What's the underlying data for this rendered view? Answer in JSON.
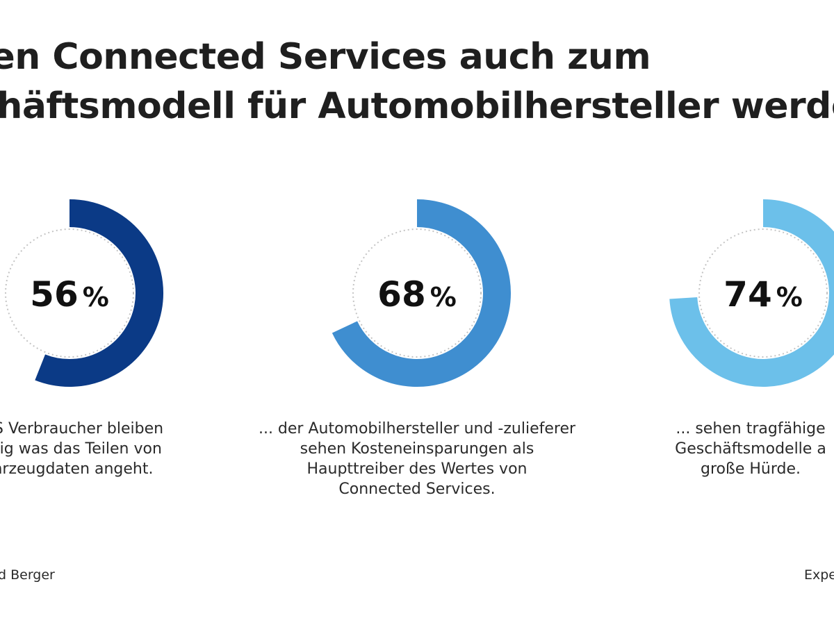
{
  "header": {
    "title_line_1": "hen Connected Services auch zum",
    "title_line_2": "chäftsmodell für Automobilhersteller werde"
  },
  "chart_data": [
    {
      "type": "pie",
      "value": 56,
      "label": "56 %",
      "color": "#0b3a86",
      "caption": [
        "US Verbraucher bleiben",
        "htig was das Teilen von",
        "hrzeugdaten angeht."
      ]
    },
    {
      "type": "pie",
      "value": 68,
      "label": "68 %",
      "color": "#3f8ed0",
      "caption": [
        "... der Automobilhersteller und -zulieferer",
        "sehen Kosteneinsparungen als",
        "Haupttreiber des Wertes von",
        "Connected Services."
      ]
    },
    {
      "type": "pie",
      "value": 74,
      "label": "74 %",
      "color": "#6cc0ea",
      "caption": [
        "... sehen tragfähige",
        "Geschäftsmodelle a",
        "große Hürde."
      ]
    }
  ],
  "footer": {
    "left": "d Berger",
    "right": "Expe"
  },
  "colors": {
    "dotted_track": "#c4c4c4",
    "text": "#1f1f1f"
  }
}
